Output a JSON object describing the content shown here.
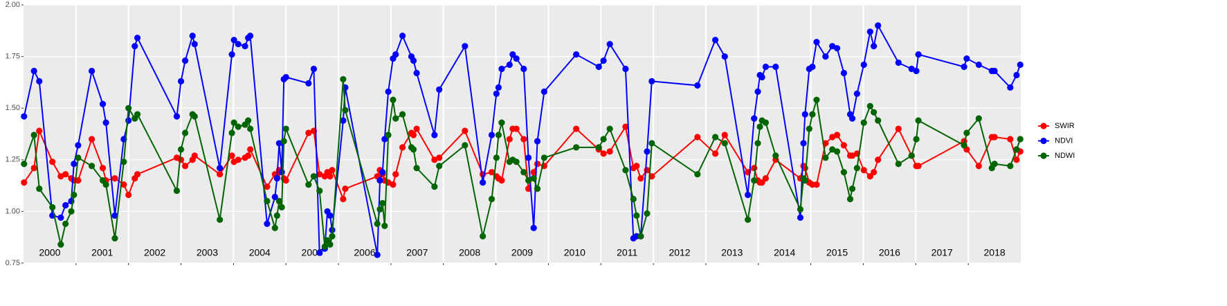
{
  "chart_data": {
    "type": "line",
    "x": [
      2000.01,
      2000.2,
      2000.3,
      2000.55,
      2000.71,
      2000.8,
      2000.91,
      2000.96,
      2001.04,
      2001.3,
      2001.51,
      2001.57,
      2001.74,
      2001.91,
      2002.0,
      2002.12,
      2002.17,
      2002.92,
      2003.0,
      2003.08,
      2003.22,
      2003.26,
      2003.74,
      2003.97,
      2004.01,
      2004.09,
      2004.22,
      2004.28,
      2004.32,
      2004.64,
      2004.79,
      2004.83,
      2004.87,
      2004.92,
      2004.96,
      2005.0,
      2005.43,
      2005.53,
      2005.64,
      2005.74,
      2005.79,
      2005.84,
      2005.88,
      2006.09,
      2006.13,
      2006.74,
      2006.79,
      2006.84,
      2006.88,
      2006.95,
      2007.04,
      2007.09,
      2007.22,
      2007.39,
      2007.43,
      2007.49,
      2007.83,
      2007.92,
      2008.41,
      2008.75,
      2008.92,
      2009.01,
      2009.05,
      2009.11,
      2009.26,
      2009.32,
      2009.39,
      2009.53,
      2009.62,
      2009.72,
      2009.79,
      2009.92,
      2010.53,
      2010.96,
      2011.05,
      2011.17,
      2011.47,
      2011.62,
      2011.68,
      2011.76,
      2011.88,
      2011.97,
      2012.84,
      2013.18,
      2013.36,
      2013.8,
      2013.92,
      2013.99,
      2014.03,
      2014.07,
      2014.14,
      2014.33,
      2014.8,
      2014.86,
      2014.89,
      2014.97,
      2015.03,
      2015.11,
      2015.28,
      2015.41,
      2015.5,
      2015.63,
      2015.75,
      2015.79,
      2015.88,
      2016.01,
      2016.13,
      2016.2,
      2016.28,
      2016.67,
      2016.92,
      2017.01,
      2017.05,
      2017.92,
      2017.97,
      2018.2,
      2018.45,
      2018.5,
      2018.8,
      2018.92,
      2018.99
    ],
    "series": [
      {
        "name": "SWIR",
        "color": "#ff0000",
        "values": [
          1.14,
          1.21,
          1.39,
          1.24,
          1.17,
          1.18,
          1.16,
          1.15,
          1.15,
          1.35,
          1.21,
          1.15,
          1.16,
          1.13,
          1.08,
          1.16,
          1.18,
          1.26,
          1.25,
          1.22,
          1.25,
          1.27,
          1.18,
          1.27,
          1.24,
          1.25,
          1.26,
          1.27,
          1.3,
          1.12,
          1.18,
          1.17,
          1.2,
          1.19,
          1.16,
          1.15,
          1.38,
          1.39,
          1.18,
          1.17,
          1.19,
          1.17,
          1.2,
          1.06,
          1.11,
          1.17,
          1.2,
          1.18,
          1.15,
          1.14,
          1.13,
          1.18,
          1.31,
          1.38,
          1.37,
          1.4,
          1.25,
          1.26,
          1.39,
          1.18,
          1.19,
          1.17,
          1.16,
          1.15,
          1.35,
          1.4,
          1.4,
          1.35,
          1.11,
          1.19,
          1.23,
          1.22,
          1.4,
          1.3,
          1.28,
          1.29,
          1.41,
          1.21,
          1.22,
          1.16,
          1.2,
          1.17,
          1.36,
          1.28,
          1.37,
          1.19,
          1.21,
          1.15,
          1.14,
          1.14,
          1.16,
          1.25,
          1.16,
          1.22,
          1.21,
          1.14,
          1.13,
          1.13,
          1.33,
          1.36,
          1.37,
          1.32,
          1.27,
          1.27,
          1.28,
          1.2,
          1.17,
          1.19,
          1.25,
          1.4,
          1.27,
          1.22,
          1.22,
          1.34,
          1.3,
          1.22,
          1.36,
          1.36,
          1.35,
          1.25,
          1.29
        ]
      },
      {
        "name": "NDVI",
        "color": "#0000ff",
        "values": [
          1.46,
          1.68,
          1.63,
          0.98,
          0.97,
          1.03,
          1.05,
          1.23,
          1.32,
          1.68,
          1.52,
          1.43,
          0.98,
          1.35,
          1.44,
          1.8,
          1.84,
          1.46,
          1.63,
          1.73,
          1.85,
          1.81,
          1.21,
          1.76,
          1.83,
          1.81,
          1.8,
          1.84,
          1.85,
          0.94,
          1.07,
          1.16,
          1.33,
          1.19,
          1.64,
          1.65,
          1.62,
          1.69,
          0.8,
          0.82,
          1.0,
          0.98,
          0.91,
          1.44,
          1.6,
          0.79,
          1.15,
          1.19,
          1.35,
          1.58,
          1.74,
          1.76,
          1.85,
          1.75,
          1.73,
          1.67,
          1.37,
          1.59,
          1.8,
          1.14,
          1.37,
          1.57,
          1.6,
          1.69,
          1.71,
          1.76,
          1.74,
          1.69,
          1.26,
          0.92,
          1.34,
          1.58,
          1.76,
          1.7,
          1.73,
          1.81,
          1.69,
          0.87,
          0.88,
          0.88,
          1.29,
          1.63,
          1.61,
          1.83,
          1.75,
          1.08,
          1.45,
          1.58,
          1.66,
          1.65,
          1.7,
          1.7,
          0.97,
          1.33,
          1.47,
          1.69,
          1.7,
          1.82,
          1.75,
          1.8,
          1.79,
          1.67,
          1.47,
          1.45,
          1.57,
          1.71,
          1.87,
          1.8,
          1.9,
          1.72,
          1.69,
          1.68,
          1.76,
          1.7,
          1.74,
          1.71,
          1.68,
          1.68,
          1.6,
          1.66,
          1.71
        ]
      },
      {
        "name": "NDWI",
        "color": "#006400",
        "values": [
          1.23,
          1.37,
          1.11,
          1.02,
          0.84,
          0.94,
          1.0,
          1.08,
          1.26,
          1.22,
          1.15,
          1.13,
          0.87,
          1.24,
          1.5,
          1.45,
          1.47,
          1.1,
          1.3,
          1.38,
          1.47,
          1.46,
          0.96,
          1.38,
          1.43,
          1.41,
          1.42,
          1.44,
          1.4,
          1.05,
          0.92,
          0.98,
          1.05,
          1.02,
          1.34,
          1.4,
          1.13,
          1.17,
          1.1,
          0.83,
          0.86,
          0.84,
          0.88,
          1.64,
          1.49,
          0.94,
          1.01,
          1.04,
          0.93,
          1.37,
          1.54,
          1.45,
          1.47,
          1.31,
          1.3,
          1.21,
          1.12,
          1.22,
          1.32,
          0.88,
          1.06,
          1.26,
          1.37,
          1.43,
          1.24,
          1.25,
          1.24,
          1.19,
          1.15,
          1.16,
          1.11,
          1.26,
          1.31,
          1.31,
          1.35,
          1.4,
          1.2,
          1.06,
          0.98,
          0.88,
          0.99,
          1.33,
          1.18,
          1.36,
          1.33,
          0.96,
          1.15,
          1.33,
          1.41,
          1.44,
          1.43,
          1.27,
          1.01,
          1.16,
          1.15,
          1.4,
          1.47,
          1.54,
          1.26,
          1.3,
          1.29,
          1.19,
          1.06,
          1.11,
          1.21,
          1.43,
          1.51,
          1.48,
          1.44,
          1.23,
          1.27,
          1.35,
          1.44,
          1.32,
          1.38,
          1.45,
          1.21,
          1.23,
          1.22,
          1.3,
          1.35
        ]
      }
    ],
    "xlim": [
      2000,
      2019
    ],
    "xticks": [
      {
        "value": 2000.5,
        "label": "2000"
      },
      {
        "value": 2001.5,
        "label": "2001"
      },
      {
        "value": 2002.5,
        "label": "2002"
      },
      {
        "value": 2003.5,
        "label": "2003"
      },
      {
        "value": 2004.5,
        "label": "2004"
      },
      {
        "value": 2005.5,
        "label": "2005"
      },
      {
        "value": 2006.5,
        "label": "2006"
      },
      {
        "value": 2007.5,
        "label": "2007"
      },
      {
        "value": 2008.5,
        "label": "2008"
      },
      {
        "value": 2009.5,
        "label": "2009"
      },
      {
        "value": 2010.5,
        "label": "2010"
      },
      {
        "value": 2011.5,
        "label": "2011"
      },
      {
        "value": 2012.5,
        "label": "2012"
      },
      {
        "value": 2013.5,
        "label": "2013"
      },
      {
        "value": 2014.5,
        "label": "2014"
      },
      {
        "value": 2015.5,
        "label": "2015"
      },
      {
        "value": 2016.5,
        "label": "2016"
      },
      {
        "value": 2017.5,
        "label": "2017"
      },
      {
        "value": 2018.5,
        "label": "2018"
      }
    ],
    "xgrid": [
      2001,
      2002,
      2003,
      2004,
      2005,
      2006,
      2007,
      2008,
      2009,
      2010,
      2011,
      2012,
      2013,
      2014,
      2015,
      2016,
      2017,
      2018
    ],
    "ylim": [
      0.75,
      2.0
    ],
    "yticks": [
      0.75,
      {
        "value": 1.0,
        "label": "1.00"
      },
      1.25,
      {
        "value": 1.5,
        "label": "1.50"
      },
      1.75,
      {
        "value": 2.0,
        "label": "2.00"
      }
    ],
    "grid": true
  }
}
